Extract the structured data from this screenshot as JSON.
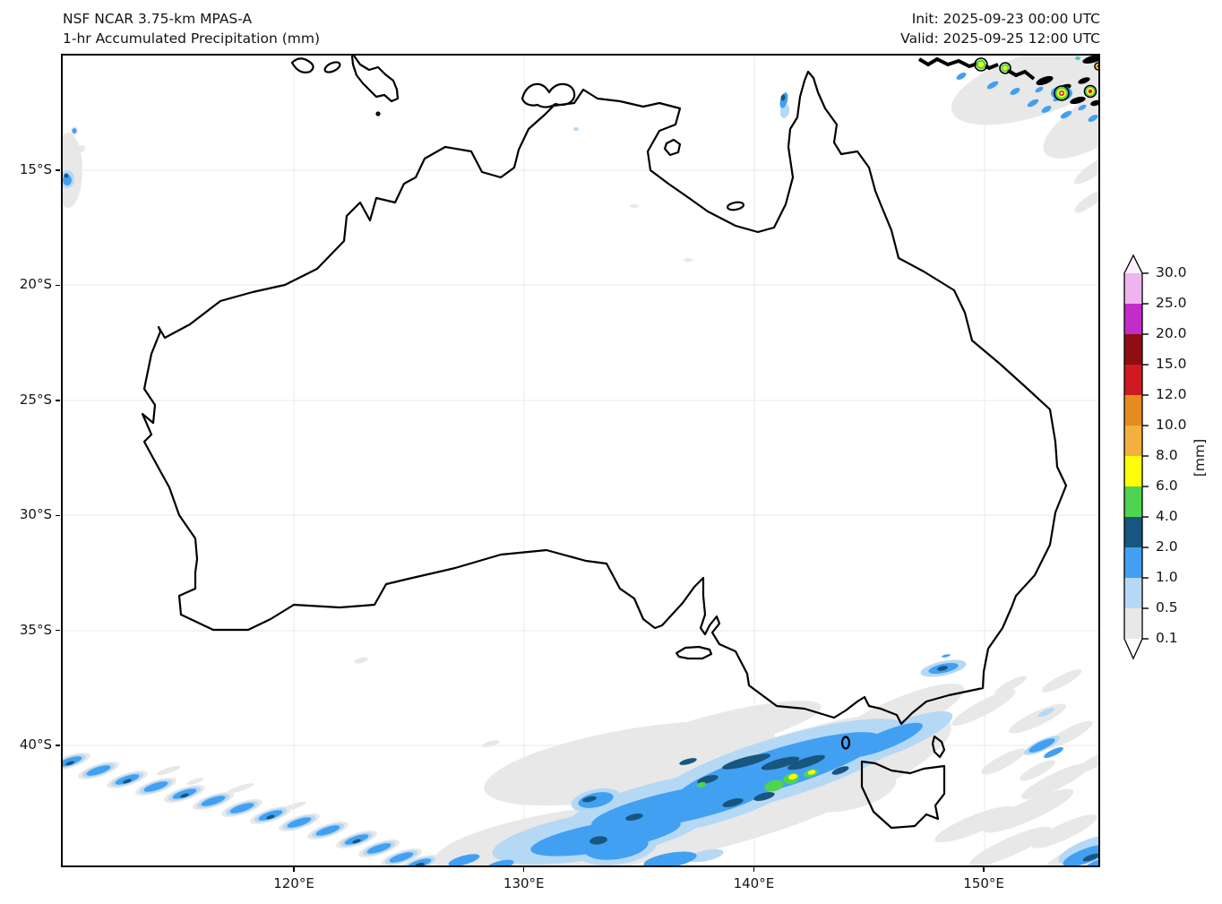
{
  "header": {
    "title_line1": "NSF NCAR 3.75-km MPAS-A",
    "title_line2": "1-hr Accumulated Precipitation (mm)",
    "init_label": "Init: 2025-09-23 00:00 UTC",
    "valid_label": "Valid: 2025-09-25 12:00 UTC"
  },
  "map": {
    "x_tick_labels": [
      "120°E",
      "130°E",
      "140°E",
      "150°E"
    ],
    "y_tick_labels": [
      "15°S",
      "20°S",
      "25°S",
      "30°S",
      "35°S",
      "40°S"
    ]
  },
  "colorbar": {
    "unit": "[mm]",
    "tick_labels": [
      "0.1",
      "0.5",
      "1.0",
      "2.0",
      "4.0",
      "6.0",
      "8.0",
      "10.0",
      "12.0",
      "15.0",
      "20.0",
      "25.0",
      "30.0"
    ],
    "segment_colors": [
      "#e8e8e8",
      "#b5d8f5",
      "#42a0f2",
      "#18567f",
      "#4fd44f",
      "#fdfd05",
      "#f2b13f",
      "#e58b1f",
      "#d01a22",
      "#8e0e14",
      "#c32cc6",
      "#efb3ef"
    ],
    "under_color": "#ffffff",
    "over_color": "#fdeffd"
  },
  "chart_data": {
    "type": "heatmap",
    "title": "1-hr Accumulated Precipitation (mm)",
    "model": "NSF NCAR 3.75-km MPAS-A",
    "init_time": "2025-09-23 00:00 UTC",
    "valid_time": "2025-09-25 12:00 UTC",
    "region": "Australia",
    "grid": true,
    "extent": {
      "lon_min": 109.87,
      "lon_max": 155.06,
      "lat_s_min": 9.94,
      "lat_s_max": 45.29
    },
    "x_ticks_deg_east": [
      120,
      130,
      140,
      150
    ],
    "y_ticks_deg_south": [
      15,
      20,
      25,
      30,
      35,
      40
    ],
    "colorbar_levels_mm": [
      0.1,
      0.5,
      1.0,
      2.0,
      4.0,
      6.0,
      8.0,
      10.0,
      12.0,
      15.0,
      20.0,
      25.0,
      30.0
    ],
    "unit": "mm",
    "legend_position": "right",
    "precip_regions": [
      {
        "area": "Frontal rainband over Southern Ocean / Bass Strait west of Tasmania",
        "approx_lon": [
          133,
          147
        ],
        "approx_lat_s": [
          38,
          45
        ],
        "max_category_mm": "6-8"
      },
      {
        "area": "Diagonal cold-frontal shower chain, far southwest corner",
        "approx_lon": [
          110,
          124
        ],
        "approx_lat_s": [
          40,
          45
        ],
        "max_category_mm": "2-4"
      },
      {
        "area": "Intense convective cells near New Guinea, top-right corner",
        "approx_lon": [
          145,
          155
        ],
        "approx_lat_s": [
          10,
          13
        ],
        "max_category_mm": ">30"
      },
      {
        "area": "Scattered light showers in Tasman Sea east of Tasmania",
        "approx_lon": [
          147,
          155
        ],
        "approx_lat_s": [
          38,
          45
        ],
        "max_category_mm": "1-2"
      },
      {
        "area": "Shower streak offshore of the Victoria/NSW coast",
        "approx_lon": [
          147.5,
          149.5
        ],
        "approx_lat_s": [
          35.5,
          36.5
        ],
        "max_category_mm": "2-4"
      },
      {
        "area": "Small patch at western map edge near 15°S",
        "approx_lon": [
          110,
          111
        ],
        "approx_lat_s": [
          13,
          17
        ],
        "max_category_mm": "1-2"
      },
      {
        "area": "Isolated cell on western Cape York Peninsula",
        "approx_lon": [
          141.5,
          142.0
        ],
        "approx_lat_s": [
          11.5,
          12.5
        ],
        "max_category_mm": "2-4"
      }
    ]
  }
}
